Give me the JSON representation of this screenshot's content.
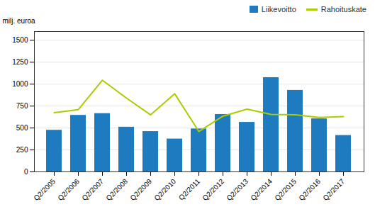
{
  "chart_data": {
    "type": "bar",
    "ylabel": "milj. euroa",
    "categories": [
      "Q2/2005",
      "Q2/2006",
      "Q2/2007",
      "Q2/2008",
      "Q2/2009",
      "Q2/2010",
      "Q2/2011",
      "Q2/2012",
      "Q2/2013",
      "Q2/2014",
      "Q2/2015",
      "Q2/2016",
      "Q2/2017"
    ],
    "series": [
      {
        "name": "Liikevoitto",
        "type": "bar",
        "color": "#1f7bbf",
        "values": [
          475,
          645,
          665,
          510,
          460,
          375,
          490,
          655,
          565,
          1075,
          930,
          605,
          415
        ]
      },
      {
        "name": "Rahoituskate",
        "type": "line",
        "color": "#aacc00",
        "values": [
          675,
          710,
          1045,
          840,
          650,
          890,
          460,
          635,
          715,
          655,
          650,
          620,
          630
        ]
      }
    ],
    "ylim": [
      0,
      1600
    ],
    "yticks": [
      0,
      250,
      500,
      750,
      1000,
      1250,
      1500
    ],
    "grid": true,
    "legend": "upper right"
  }
}
